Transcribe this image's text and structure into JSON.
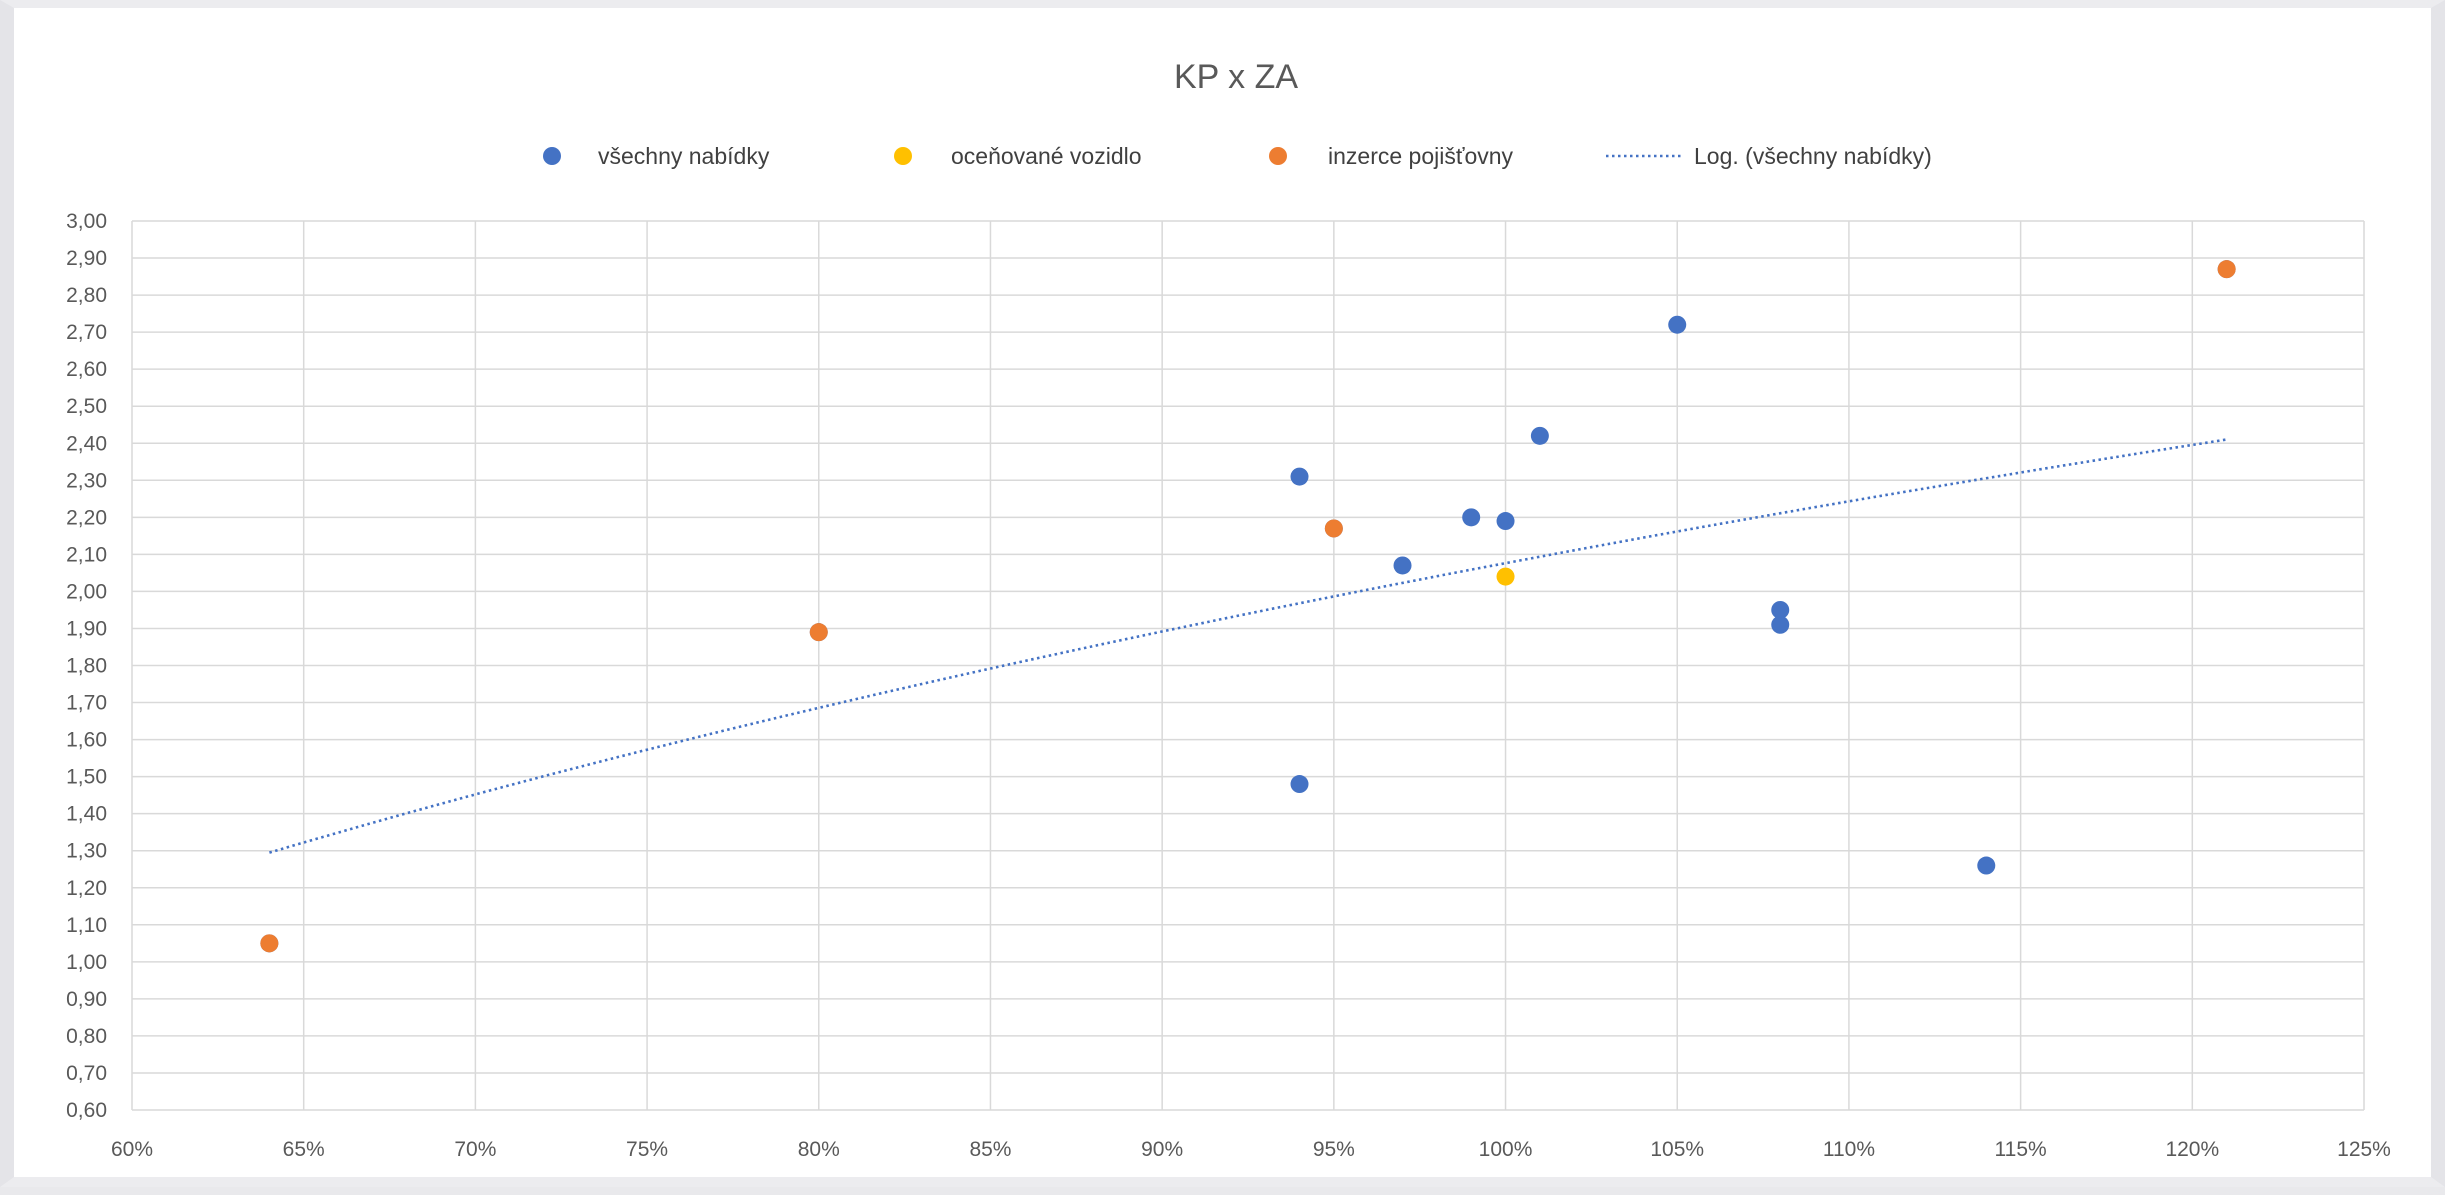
{
  "chart_data": {
    "type": "scatter",
    "title": "KP x ZA",
    "xlabel": "",
    "ylabel": "",
    "xlim": [
      0.6,
      1.25
    ],
    "ylim": [
      0.6,
      3.0
    ],
    "x_ticks": [
      0.6,
      0.65,
      0.7,
      0.75,
      0.8,
      0.85,
      0.9,
      0.95,
      1.0,
      1.05,
      1.1,
      1.15,
      1.2,
      1.25
    ],
    "x_tick_labels": [
      "60%",
      "65%",
      "70%",
      "75%",
      "80%",
      "85%",
      "90%",
      "95%",
      "100%",
      "105%",
      "110%",
      "115%",
      "120%",
      "125%"
    ],
    "y_ticks": [
      0.6,
      0.7,
      0.8,
      0.9,
      1.0,
      1.1,
      1.2,
      1.3,
      1.4,
      1.5,
      1.6,
      1.7,
      1.8,
      1.9,
      2.0,
      2.1,
      2.2,
      2.3,
      2.4,
      2.5,
      2.6,
      2.7,
      2.8,
      2.9,
      3.0
    ],
    "y_tick_labels": [
      "0,60",
      "0,70",
      "0,80",
      "0,90",
      "1,00",
      "1,10",
      "1,20",
      "1,30",
      "1,40",
      "1,50",
      "1,60",
      "1,70",
      "1,80",
      "1,90",
      "2,00",
      "2,10",
      "2,20",
      "2,30",
      "2,40",
      "2,50",
      "2,60",
      "2,70",
      "2,80",
      "2,90",
      "3,00"
    ],
    "grid": true,
    "legend_position": "top",
    "series": [
      {
        "name": "všechny nabídky",
        "color": "#4472c4",
        "points": [
          {
            "x": 0.64,
            "y": 1.05
          },
          {
            "x": 0.8,
            "y": 1.89
          },
          {
            "x": 0.94,
            "y": 2.31
          },
          {
            "x": 0.94,
            "y": 1.48
          },
          {
            "x": 0.95,
            "y": 2.17
          },
          {
            "x": 0.97,
            "y": 2.07
          },
          {
            "x": 0.99,
            "y": 2.2
          },
          {
            "x": 1.0,
            "y": 2.19
          },
          {
            "x": 1.01,
            "y": 2.42
          },
          {
            "x": 1.05,
            "y": 2.72
          },
          {
            "x": 1.08,
            "y": 1.95
          },
          {
            "x": 1.08,
            "y": 1.91
          },
          {
            "x": 1.14,
            "y": 1.26
          },
          {
            "x": 1.21,
            "y": 2.87
          }
        ]
      },
      {
        "name": "oceňované vozidlo",
        "color": "#ffc000",
        "points": [
          {
            "x": 1.0,
            "y": 2.04
          }
        ]
      },
      {
        "name": "inzerce pojišťovny",
        "color": "#ed7d31",
        "points": [
          {
            "x": 0.64,
            "y": 1.05
          },
          {
            "x": 0.8,
            "y": 1.89
          },
          {
            "x": 0.95,
            "y": 2.17
          },
          {
            "x": 1.21,
            "y": 2.87
          }
        ]
      }
    ],
    "trendline": {
      "name": "Log. (všechny nabídky)",
      "type": "logarithmic",
      "of_series": "všechny nabídky",
      "color": "#4472c4",
      "style": "dotted",
      "x_range": [
        0.64,
        1.21
      ],
      "y_range": [
        1.295,
        2.41
      ]
    }
  }
}
